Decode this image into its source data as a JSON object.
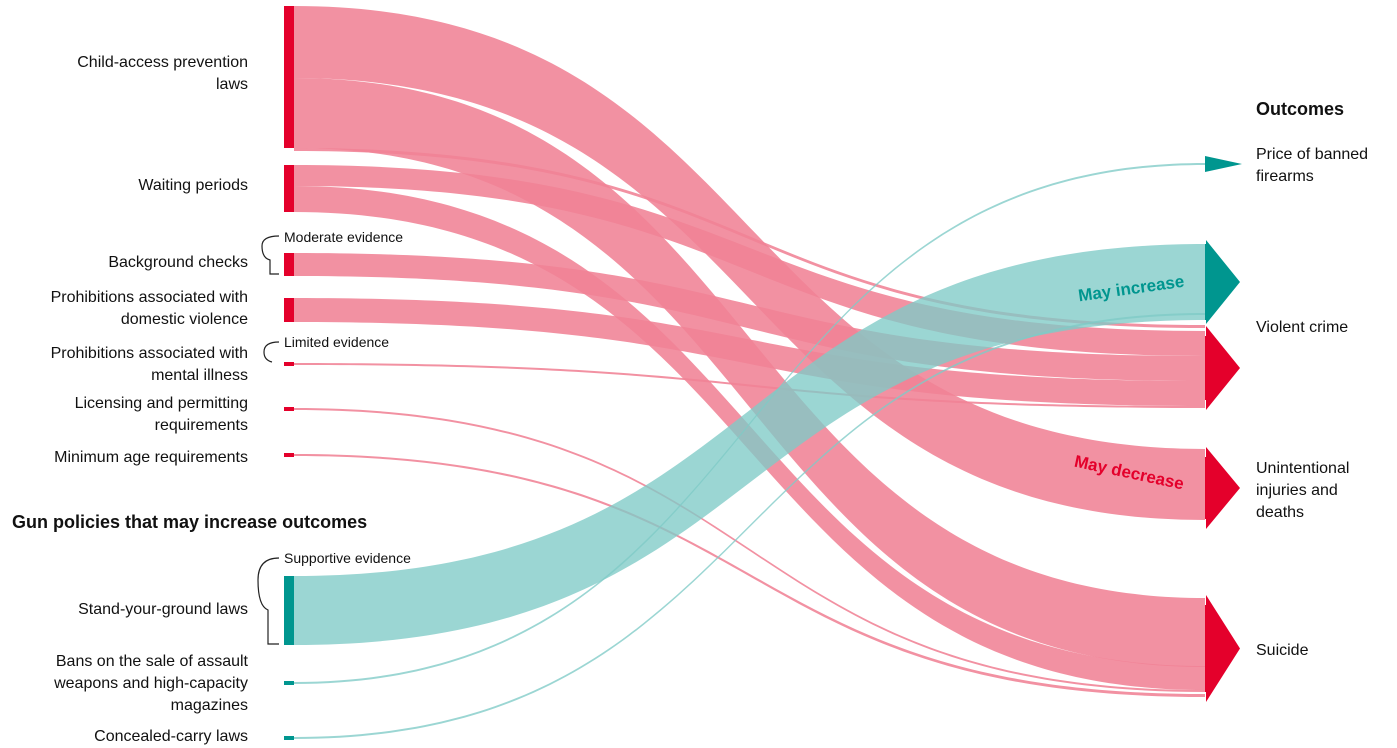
{
  "headings": {
    "increase_policies": "Gun policies that may increase outcomes",
    "outcomes": "Outcomes"
  },
  "evidence_labels": {
    "moderate": "Moderate evidence",
    "limited": "Limited evidence",
    "supportive": "Supportive evidence"
  },
  "stream_labels": {
    "increase": "May increase",
    "decrease": "May decrease"
  },
  "colors": {
    "decrease": "#e4002b",
    "decrease_flow": "#f08295",
    "increase": "#00968f",
    "increase_flow": "#7fcac7"
  },
  "policies": [
    {
      "label": "Child-access prevention\nlaws",
      "group": "decrease"
    },
    {
      "label": "Waiting periods",
      "group": "decrease"
    },
    {
      "label": "Background checks",
      "group": "decrease"
    },
    {
      "label": "Prohibitions associated with\ndomestic violence",
      "group": "decrease"
    },
    {
      "label": "Prohibitions associated with\nmental illness",
      "group": "decrease"
    },
    {
      "label": "Licensing and permitting\nrequirements",
      "group": "decrease"
    },
    {
      "label": "Minimum age requirements",
      "group": "decrease"
    },
    {
      "label": "Stand-your-ground laws",
      "group": "increase"
    },
    {
      "label": "Bans on the sale of assault\nweapons and high-capacity\nmagazines",
      "group": "increase"
    },
    {
      "label": "Concealed-carry laws",
      "group": "increase"
    }
  ],
  "outcomes": [
    {
      "label": "Price of banned\nfirearms"
    },
    {
      "label": "Violent crime"
    },
    {
      "label": "Unintentional\ninjuries and\ndeaths"
    },
    {
      "label": "Suicide"
    }
  ],
  "flows": [
    {
      "from": "Child-access prevention laws",
      "to": "Unintentional injuries and deaths",
      "direction": "decrease",
      "evidence": "moderate"
    },
    {
      "from": "Child-access prevention laws",
      "to": "Suicide",
      "direction": "decrease",
      "evidence": "moderate"
    },
    {
      "from": "Child-access prevention laws",
      "to": "Violent crime",
      "direction": "decrease",
      "evidence": "limited"
    },
    {
      "from": "Waiting periods",
      "to": "Violent crime",
      "direction": "decrease",
      "evidence": "moderate"
    },
    {
      "from": "Waiting periods",
      "to": "Suicide",
      "direction": "decrease",
      "evidence": "moderate"
    },
    {
      "from": "Background checks",
      "to": "Violent crime",
      "direction": "decrease",
      "evidence": "moderate"
    },
    {
      "from": "Prohibitions associated with domestic violence",
      "to": "Violent crime",
      "direction": "decrease",
      "evidence": "moderate"
    },
    {
      "from": "Prohibitions associated with mental illness",
      "to": "Violent crime",
      "direction": "decrease",
      "evidence": "limited"
    },
    {
      "from": "Licensing and permitting requirements",
      "to": "Suicide",
      "direction": "decrease",
      "evidence": "limited"
    },
    {
      "from": "Minimum age requirements",
      "to": "Suicide",
      "direction": "decrease",
      "evidence": "limited"
    },
    {
      "from": "Stand-your-ground laws",
      "to": "Violent crime",
      "direction": "increase",
      "evidence": "supportive"
    },
    {
      "from": "Bans on the sale of assault weapons and high-capacity magazines",
      "to": "Price of banned firearms",
      "direction": "increase",
      "evidence": "limited"
    },
    {
      "from": "Concealed-carry laws",
      "to": "Violent crime",
      "direction": "increase",
      "evidence": "limited"
    }
  ]
}
